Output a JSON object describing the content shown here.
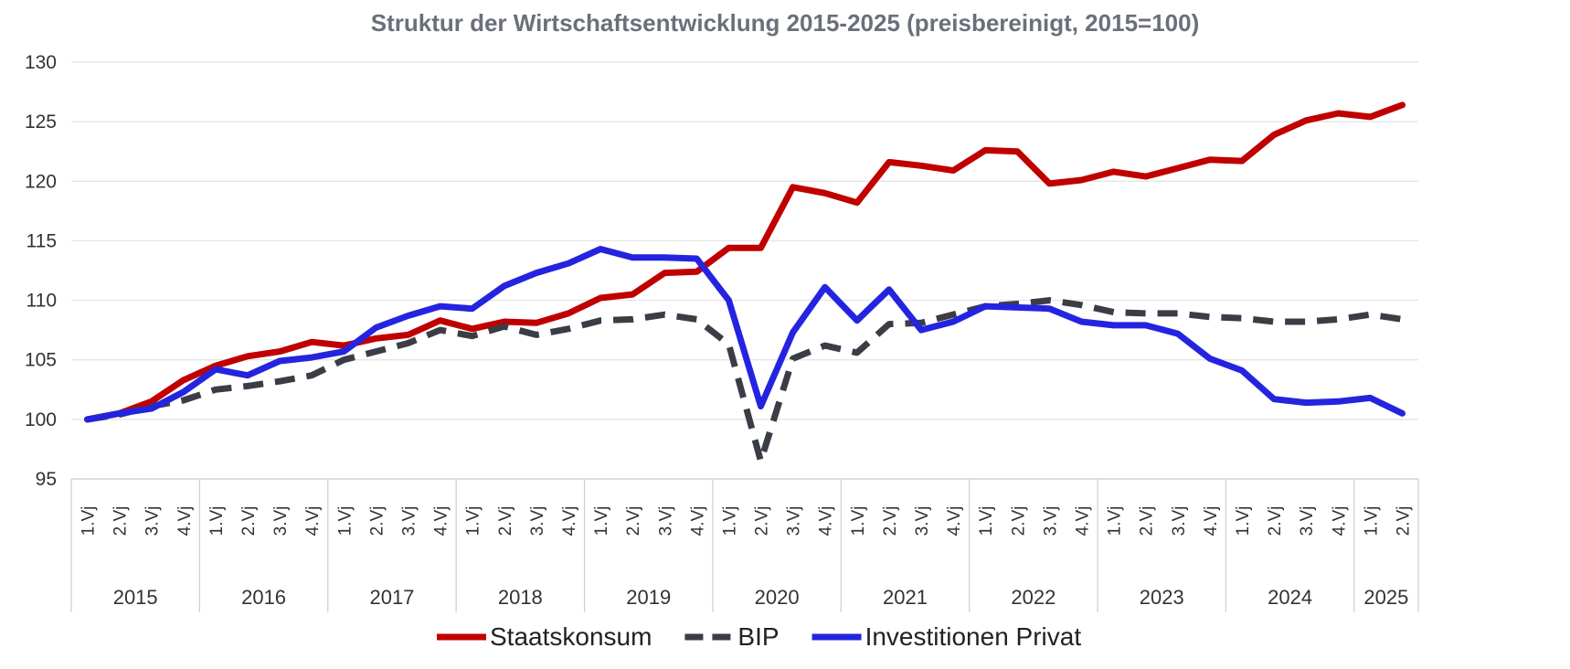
{
  "chart_data": {
    "type": "line",
    "title": "Struktur der Wirtschaftsentwicklung 2015-2025 (preisbereinigt, 2015=100)",
    "xlabel": "",
    "ylabel": "",
    "ylim": [
      95,
      130
    ],
    "yticks": [
      95,
      100,
      105,
      110,
      115,
      120,
      125,
      130
    ],
    "grid": true,
    "legend_position": "bottom",
    "categories": [
      "1.Vj",
      "2.Vj",
      "3.Vj",
      "4.Vj",
      "1.Vj",
      "2.Vj",
      "3.Vj",
      "4.Vj",
      "1.Vj",
      "2.Vj",
      "3.Vj",
      "4.Vj",
      "1.Vj",
      "2.Vj",
      "3.Vj",
      "4.Vj",
      "1.Vj",
      "2.Vj",
      "3.Vj",
      "4.Vj",
      "1.Vj",
      "2.Vj",
      "3.Vj",
      "4.Vj",
      "1.Vj",
      "2.Vj",
      "3.Vj",
      "4.Vj",
      "1.Vj",
      "2.Vj",
      "3.Vj",
      "4.Vj",
      "1.Vj",
      "2.Vj",
      "3.Vj",
      "4.Vj",
      "1.Vj",
      "2.Vj",
      "3.Vj",
      "4.Vj",
      "1.Vj",
      "2.Vj"
    ],
    "years": [
      {
        "label": "2015",
        "count": 4
      },
      {
        "label": "2016",
        "count": 4
      },
      {
        "label": "2017",
        "count": 4
      },
      {
        "label": "2018",
        "count": 4
      },
      {
        "label": "2019",
        "count": 4
      },
      {
        "label": "2020",
        "count": 4
      },
      {
        "label": "2021",
        "count": 4
      },
      {
        "label": "2022",
        "count": 4
      },
      {
        "label": "2023",
        "count": 4
      },
      {
        "label": "2024",
        "count": 4
      },
      {
        "label": "2025",
        "count": 2
      }
    ],
    "series": [
      {
        "name": "Staatskonsum",
        "color": "#c00000",
        "dash": "solid",
        "values": [
          100.0,
          100.5,
          101.5,
          103.3,
          104.5,
          105.3,
          105.7,
          106.5,
          106.2,
          106.8,
          107.1,
          108.3,
          107.6,
          108.2,
          108.1,
          108.9,
          110.2,
          110.5,
          112.3,
          112.4,
          114.4,
          114.4,
          119.5,
          119.0,
          118.2,
          121.6,
          121.3,
          120.9,
          122.6,
          122.5,
          119.8,
          120.1,
          120.8,
          120.4,
          121.1,
          121.8,
          121.7,
          123.9,
          125.1,
          125.7,
          125.4,
          126.4
        ]
      },
      {
        "name": "BIP",
        "color": "#3a3d46",
        "dash": "dashed",
        "values": [
          100.0,
          100.4,
          101.1,
          101.6,
          102.5,
          102.8,
          103.2,
          103.7,
          105.0,
          105.7,
          106.4,
          107.5,
          107.0,
          107.8,
          107.1,
          107.6,
          108.3,
          108.4,
          108.8,
          108.4,
          106.3,
          96.5,
          105.1,
          106.2,
          105.6,
          108.0,
          108.1,
          108.8,
          109.5,
          109.7,
          110.0,
          109.6,
          109.0,
          108.9,
          108.9,
          108.6,
          108.5,
          108.2,
          108.2,
          108.4,
          108.8,
          108.4
        ]
      },
      {
        "name": "Investitionen Privat",
        "color": "#2424e0",
        "dash": "solid",
        "values": [
          100.0,
          100.5,
          100.9,
          102.3,
          104.2,
          103.7,
          104.9,
          105.2,
          105.7,
          107.7,
          108.7,
          109.5,
          109.3,
          111.2,
          112.3,
          113.1,
          114.3,
          113.6,
          113.6,
          113.5,
          110.0,
          101.1,
          107.3,
          111.1,
          108.3,
          110.9,
          107.5,
          108.2,
          109.5,
          109.4,
          109.3,
          108.2,
          107.9,
          107.9,
          107.2,
          105.1,
          104.1,
          101.7,
          101.4,
          101.5,
          101.8,
          100.5
        ]
      }
    ]
  }
}
